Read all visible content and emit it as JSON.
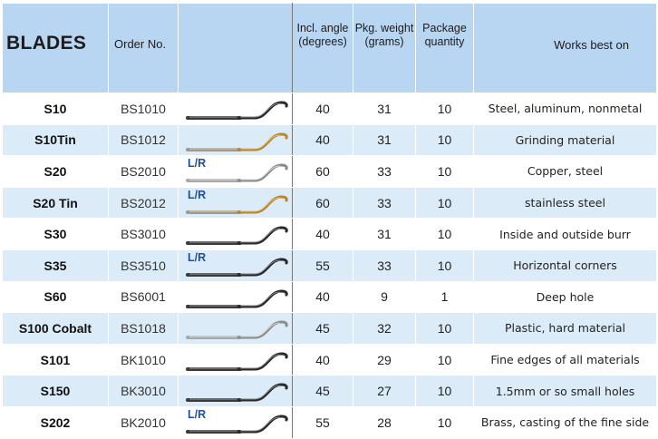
{
  "header": {
    "blades": "BLADES",
    "order_no": "Order No.",
    "angle_line1": "Incl. angle",
    "angle_line2": "(degrees)",
    "weight_line1": "Pkg. weight",
    "weight_line2": "(grams)",
    "qty_line1": "Package",
    "qty_line2": "quantity",
    "works_best_on": "Works best on"
  },
  "rows": [
    {
      "name": "S10",
      "order": "BS1010",
      "lr": "",
      "angle": "40",
      "weight": "31",
      "qty": "10",
      "works": "Steel, aluminum, nonmetal",
      "blade_color": "dark"
    },
    {
      "name": "S10Tin",
      "order": "BS1012",
      "lr": "",
      "angle": "40",
      "weight": "31",
      "qty": "10",
      "works": "Grinding material",
      "blade_color": "gold"
    },
    {
      "name": "S20",
      "order": "BS2010",
      "lr": "L/R",
      "angle": "60",
      "weight": "33",
      "qty": "10",
      "works": "Copper, steel",
      "blade_color": "silver"
    },
    {
      "name": "S20 Tin",
      "order": "BS2012",
      "lr": "L/R",
      "angle": "60",
      "weight": "33",
      "qty": "10",
      "works": "stainless steel",
      "blade_color": "gold"
    },
    {
      "name": "S30",
      "order": "BS3010",
      "lr": "",
      "angle": "40",
      "weight": "31",
      "qty": "10",
      "works": "Inside and outside burr",
      "blade_color": "dark"
    },
    {
      "name": "S35",
      "order": "BS3510",
      "lr": "L/R",
      "angle": "55",
      "weight": "33",
      "qty": "10",
      "works": "Horizontal corners",
      "blade_color": "dark"
    },
    {
      "name": "S60",
      "order": "BS6001",
      "lr": "",
      "angle": "40",
      "weight": "9",
      "qty": "1",
      "works": "Deep hole",
      "blade_color": "dark"
    },
    {
      "name": "S100 Cobalt",
      "order": "BS1018",
      "lr": "",
      "angle": "45",
      "weight": "32",
      "qty": "10",
      "works": "Plastic, hard material",
      "blade_color": "silver"
    },
    {
      "name": "S101",
      "order": "BK1010",
      "lr": "",
      "angle": "40",
      "weight": "29",
      "qty": "10",
      "works": "Fine edges of all materials",
      "blade_color": "dark"
    },
    {
      "name": "S150",
      "order": "BK3010",
      "lr": "",
      "angle": "45",
      "weight": "27",
      "qty": "10",
      "works": "1.5mm or so small holes",
      "blade_color": "dark"
    },
    {
      "name": "S202",
      "order": "BK2010",
      "lr": "L/R",
      "angle": "55",
      "weight": "28",
      "qty": "10",
      "works": "Brass, casting of the fine side",
      "blade_color": "dark"
    }
  ]
}
